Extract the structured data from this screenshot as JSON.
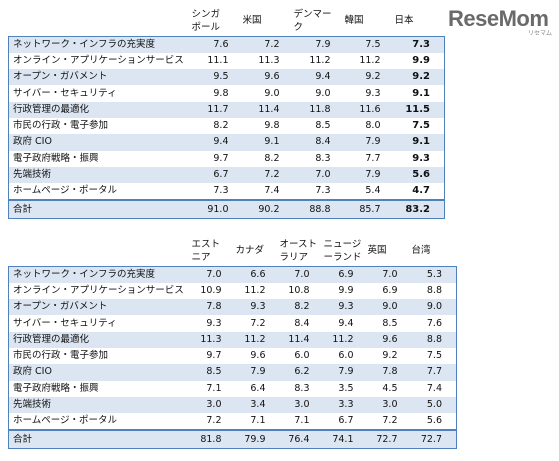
{
  "logo": {
    "text": "ReseMom",
    "sub": "リセマム"
  },
  "table1": {
    "headers": [
      "シンガ\nポール",
      "米国",
      "デンマー\nク",
      "韓国",
      "日本"
    ],
    "rows": [
      {
        "label": "ネットワーク・インフラの充実度",
        "values": [
          "7.6",
          "7.2",
          "7.9",
          "7.5",
          "7.3"
        ]
      },
      {
        "label": "オンライン・アプリケーションサービス",
        "values": [
          "11.1",
          "11.3",
          "11.2",
          "11.2",
          "9.9"
        ]
      },
      {
        "label": "オープン・ガバメント",
        "values": [
          "9.5",
          "9.6",
          "9.4",
          "9.2",
          "9.2"
        ]
      },
      {
        "label": "サイバー・セキュリティ",
        "values": [
          "9.8",
          "9.0",
          "9.0",
          "9.3",
          "9.1"
        ]
      },
      {
        "label": "行政管理の最適化",
        "values": [
          "11.7",
          "11.4",
          "11.8",
          "11.6",
          "11.5"
        ]
      },
      {
        "label": "市民の行政・電子参加",
        "values": [
          "8.2",
          "9.8",
          "8.5",
          "8.0",
          "7.5"
        ]
      },
      {
        "label": "政府 CIO",
        "values": [
          "9.4",
          "9.1",
          "8.4",
          "7.9",
          "9.1"
        ]
      },
      {
        "label": "電子政府戦略・振興",
        "values": [
          "9.7",
          "8.2",
          "8.3",
          "7.7",
          "9.3"
        ]
      },
      {
        "label": "先端技術",
        "values": [
          "6.7",
          "7.2",
          "7.0",
          "7.9",
          "5.6"
        ]
      },
      {
        "label": "ホームページ・ポータル",
        "values": [
          "7.3",
          "7.4",
          "7.3",
          "5.4",
          "4.7"
        ]
      }
    ],
    "total": {
      "label": "合計",
      "values": [
        "91.0",
        "90.2",
        "88.8",
        "85.7",
        "83.2"
      ]
    }
  },
  "table2": {
    "headers": [
      "エスト\nニア",
      "カナダ",
      "オースト\nラリア",
      "ニュージ\nーランド",
      "英国",
      "台湾"
    ],
    "rows": [
      {
        "label": "ネットワーク・インフラの充実度",
        "values": [
          "7.0",
          "6.6",
          "7.0",
          "6.9",
          "7.0",
          "5.3"
        ]
      },
      {
        "label": "オンライン・アプリケーションサービス",
        "values": [
          "10.9",
          "11.2",
          "10.8",
          "9.9",
          "6.9",
          "8.8"
        ]
      },
      {
        "label": "オープン・ガバメント",
        "values": [
          "7.8",
          "9.3",
          "8.2",
          "9.3",
          "9.0",
          "9.0"
        ]
      },
      {
        "label": "サイバー・セキュリティ",
        "values": [
          "9.3",
          "7.2",
          "8.4",
          "9.4",
          "8.5",
          "7.6"
        ]
      },
      {
        "label": "行政管理の最適化",
        "values": [
          "11.3",
          "11.2",
          "11.4",
          "11.2",
          "9.6",
          "8.8"
        ]
      },
      {
        "label": "市民の行政・電子参加",
        "values": [
          "9.7",
          "9.6",
          "6.0",
          "6.0",
          "9.2",
          "7.5"
        ]
      },
      {
        "label": "政府 CIO",
        "values": [
          "8.5",
          "7.9",
          "6.2",
          "7.9",
          "7.8",
          "7.7"
        ]
      },
      {
        "label": "電子政府戦略・振興",
        "values": [
          "7.1",
          "6.4",
          "8.3",
          "3.5",
          "4.5",
          "7.4"
        ]
      },
      {
        "label": "先端技術",
        "values": [
          "3.0",
          "3.4",
          "3.0",
          "3.3",
          "3.0",
          "5.0"
        ]
      },
      {
        "label": "ホームページ・ポータル",
        "values": [
          "7.2",
          "7.1",
          "7.1",
          "6.7",
          "7.2",
          "5.6"
        ]
      }
    ],
    "total": {
      "label": "合計",
      "values": [
        "81.8",
        "79.9",
        "76.4",
        "74.1",
        "72.7",
        "72.7"
      ]
    }
  },
  "colors": {
    "band": "#dce6f2",
    "border": "#4f81bd"
  },
  "emphasis": {
    "table1_bold_column": 4
  }
}
